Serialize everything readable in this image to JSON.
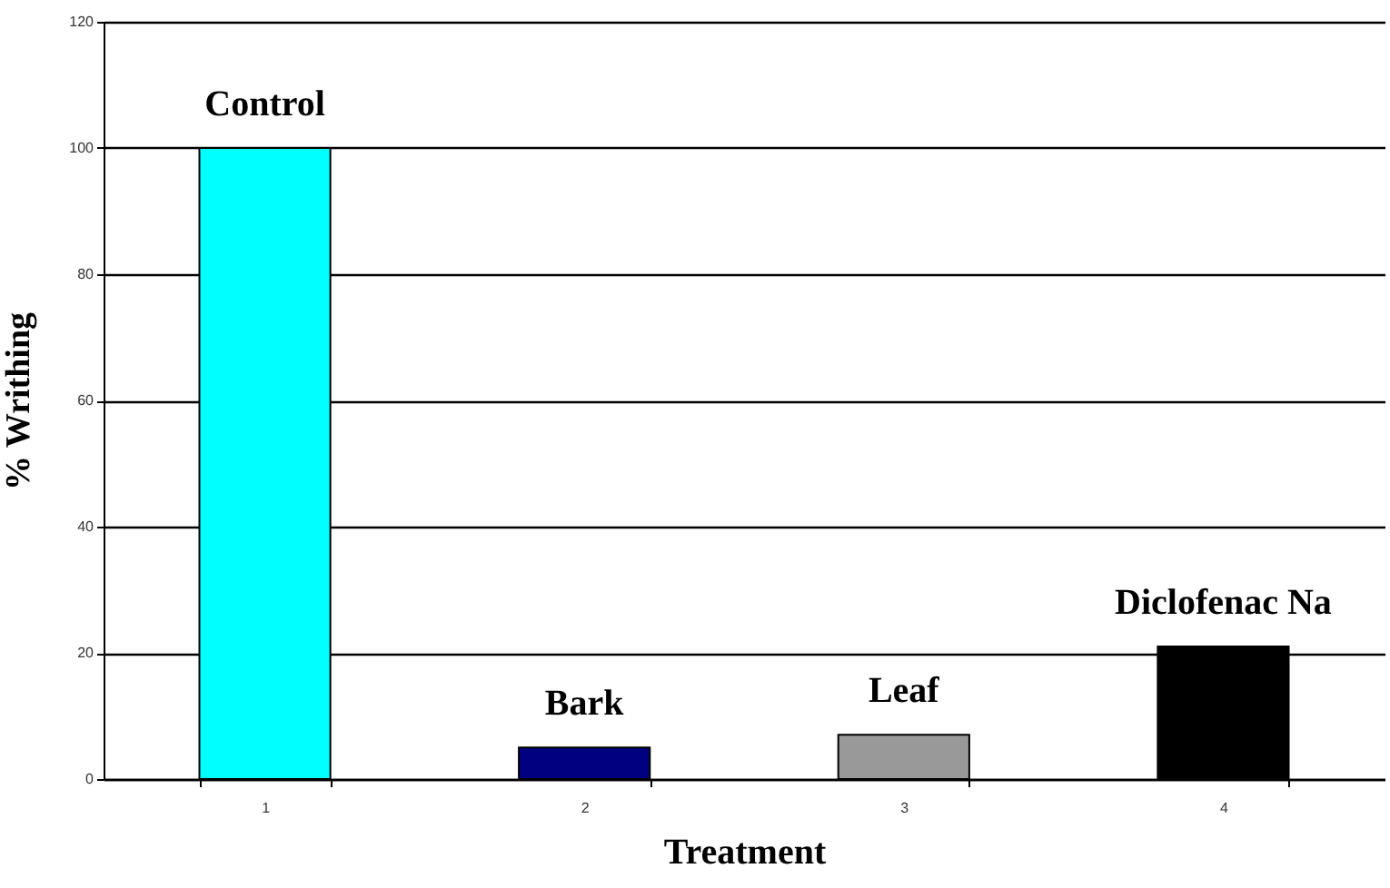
{
  "chart_data": {
    "type": "bar",
    "xlabel": "Treatment",
    "ylabel": "% Writhing",
    "categories": [
      "1",
      "2",
      "3",
      "4"
    ],
    "values": [
      100,
      5,
      7,
      21
    ],
    "colors": [
      "#00ffff",
      "#000080",
      "#999999",
      "#000000"
    ],
    "ylim": [
      0,
      120
    ],
    "yticks": [
      0,
      20,
      40,
      60,
      80,
      100,
      120
    ],
    "grid": "y",
    "annotations": [
      {
        "text": "Control",
        "x": "1",
        "y": 100
      },
      {
        "text": "Bark",
        "x": "2",
        "y": 5
      },
      {
        "text": "Leaf",
        "x": "3",
        "y": 7
      },
      {
        "text": "Diclofenac Na",
        "x": "4",
        "y": 21
      }
    ]
  }
}
